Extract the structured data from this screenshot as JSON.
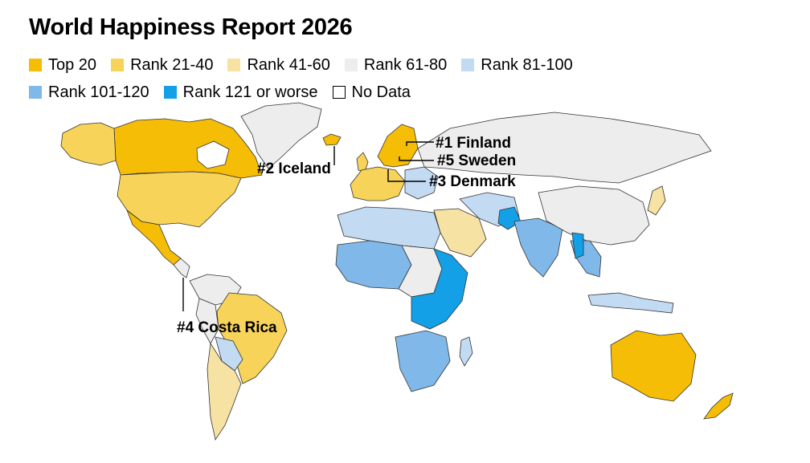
{
  "title": "World Happiness Report 2026",
  "legend": [
    {
      "label": "Top 20",
      "color": "#F6BD07"
    },
    {
      "label": "Rank 21-40",
      "color": "#F7D35A"
    },
    {
      "label": "Rank 41-60",
      "color": "#F6E2A3"
    },
    {
      "label": "Rank 61-80",
      "color": "#EDEDED"
    },
    {
      "label": "Rank 81-100",
      "color": "#C3DAF3"
    },
    {
      "label": "Rank 101-120",
      "color": "#7FB8E9"
    },
    {
      "label": "Rank 121 or worse",
      "color": "#14A0E6"
    },
    {
      "label": "No Data",
      "color": "#FFFFFF"
    }
  ],
  "callouts": {
    "finland": "#1 Finland",
    "iceland": "#2 Iceland",
    "denmark": "#3 Denmark",
    "costa_rica": "#4 Costa Rica",
    "sweden": "#5 Sweden"
  }
}
